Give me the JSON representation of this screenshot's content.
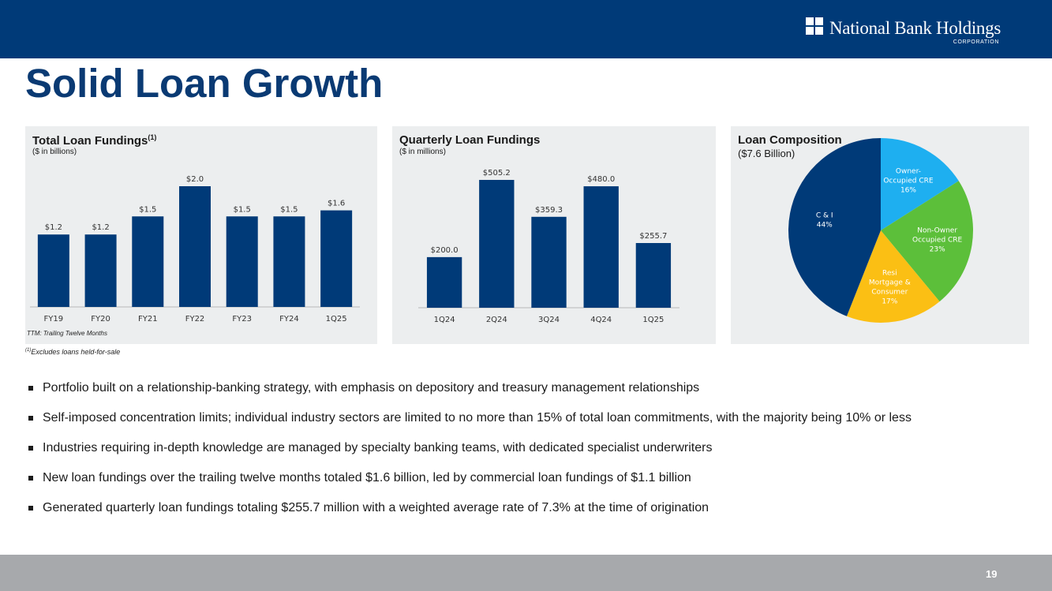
{
  "header": {
    "logo_text": "National Bank Holdings",
    "logo_subtext": "CORPORATION"
  },
  "page_title": "Solid Loan Growth",
  "colors": {
    "navy": "#003a78",
    "bar": "#003a78",
    "owner_cre": "#1eaff0",
    "non_owner_cre": "#5cbf3a",
    "resi": "#fbbf14",
    "c_and_i": "#003a78"
  },
  "panels": {
    "total": {
      "title": "Total Loan Fundings",
      "title_sup": "(1)",
      "subtitle": "($ in billions)",
      "note": "TTM: Trailing Twelve Months"
    },
    "quarterly": {
      "title": "Quarterly Loan Fundings",
      "subtitle": "($ in millions)"
    },
    "composition": {
      "title": "Loan Composition",
      "subtitle": "($7.6 Billion)"
    }
  },
  "chart_data": [
    {
      "type": "bar",
      "title": "Total Loan Fundings",
      "units": "$ in billions",
      "categories": [
        "FY19",
        "FY20",
        "FY21",
        "FY22",
        "FY23",
        "FY24",
        "1Q25"
      ],
      "values": [
        1.2,
        1.2,
        1.5,
        2.0,
        1.5,
        1.5,
        1.6
      ],
      "labels": [
        "$1.2",
        "$1.2",
        "$1.5",
        "$2.0",
        "$1.5",
        "$1.5",
        "$1.6"
      ],
      "ylim": [
        0,
        2.0
      ]
    },
    {
      "type": "bar",
      "title": "Quarterly Loan Fundings",
      "units": "$ in millions",
      "categories": [
        "1Q24",
        "2Q24",
        "3Q24",
        "4Q24",
        "1Q25"
      ],
      "values": [
        200.0,
        505.2,
        359.3,
        480.0,
        255.7
      ],
      "labels": [
        "$200.0",
        "$505.2",
        "$359.3",
        "$480.0",
        "$255.7"
      ],
      "ylim": [
        0,
        505.2
      ]
    },
    {
      "type": "pie",
      "title": "Loan Composition",
      "subtitle": "($7.6 Billion)",
      "slices": [
        {
          "name": "Owner-Occupied CRE",
          "lines": [
            "Owner-",
            "Occupied CRE",
            "16%"
          ],
          "value": 16,
          "color": "#1eaff0"
        },
        {
          "name": "Non-Owner Occupied CRE",
          "lines": [
            "Non-Owner",
            "Occupied CRE",
            "23%"
          ],
          "value": 23,
          "color": "#5cbf3a"
        },
        {
          "name": "Resi Mortgage & Consumer",
          "lines": [
            "Resi",
            "Mortgage &",
            "Consumer",
            "17%"
          ],
          "value": 17,
          "color": "#fbbf14"
        },
        {
          "name": "C & I",
          "lines": [
            "C & I",
            "44%"
          ],
          "value": 44,
          "color": "#003a78"
        }
      ]
    }
  ],
  "footnote": {
    "sup": "(1)",
    "text": "Excludes loans held-for-sale"
  },
  "bullets": [
    "Portfolio built on a relationship-banking strategy, with emphasis on depository and treasury management relationships",
    "Self-imposed concentration limits; individual industry sectors are limited to no more than 15% of total loan commitments, with the majority being 10% or less",
    "Industries requiring in-depth knowledge are managed by specialty banking teams, with dedicated specialist underwriters",
    "New loan fundings over the trailing twelve months totaled $1.6 billion, led by commercial loan fundings of $1.1 billion",
    "Generated quarterly loan fundings totaling $255.7 million with a weighted average rate of 7.3% at the time of origination"
  ],
  "page_number": "19"
}
